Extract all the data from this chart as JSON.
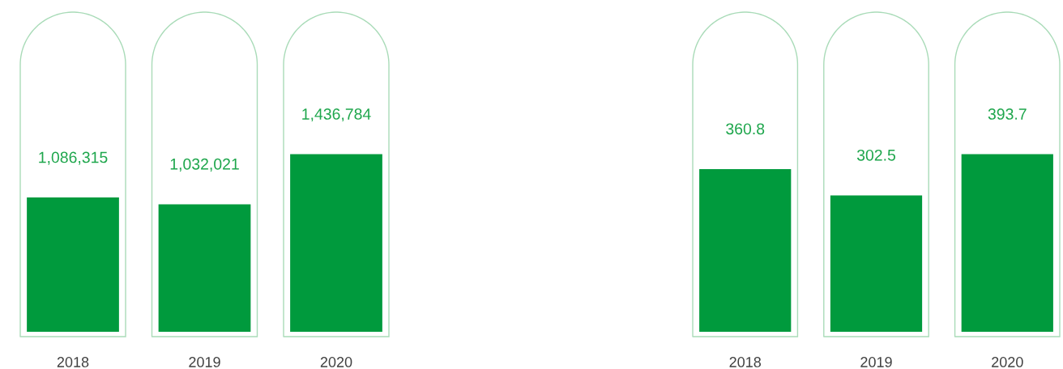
{
  "chart_data": [
    {
      "type": "bar",
      "categories": [
        "2018",
        "2019",
        "2020"
      ],
      "values": [
        1086315,
        1032021,
        1436784
      ],
      "color": "#009a3d",
      "data_labels": true,
      "value_labels": [
        "1,086,315",
        "1,032,021",
        "1,436,784"
      ]
    },
    {
      "type": "bar",
      "categories": [
        "2018",
        "2019",
        "2020"
      ],
      "values": [
        360.8,
        302.5,
        393.7
      ],
      "color": "#009a3d",
      "data_labels": true
    }
  ]
}
